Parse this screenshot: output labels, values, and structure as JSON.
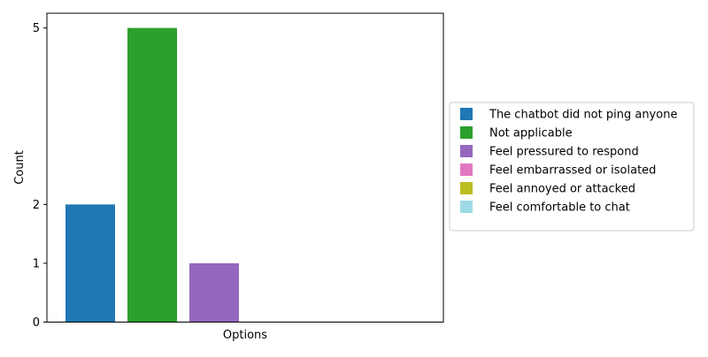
{
  "chart_data": {
    "type": "bar",
    "xlabel": "Options",
    "ylabel": "Count",
    "ylim": [
      0,
      5.25
    ],
    "yticks": [
      0,
      1,
      2,
      5
    ],
    "grid": false,
    "legend_position": "right",
    "bars": [
      {
        "label": "The chatbot did not ping anyone",
        "value": 2,
        "color": "#1f77b4"
      },
      {
        "label": "Not applicable",
        "value": 5,
        "color": "#2ca02c"
      },
      {
        "label": "Feel pressured to respond",
        "value": 1,
        "color": "#9467bd"
      },
      {
        "label": "Feel embarrassed or isolated",
        "value": 0,
        "color": "#e377c2"
      },
      {
        "label": "Feel annoyed or attacked",
        "value": 0,
        "color": "#bcbd22"
      },
      {
        "label": "Feel comfortable to chat",
        "value": 0,
        "color": "#9edae5"
      }
    ]
  }
}
